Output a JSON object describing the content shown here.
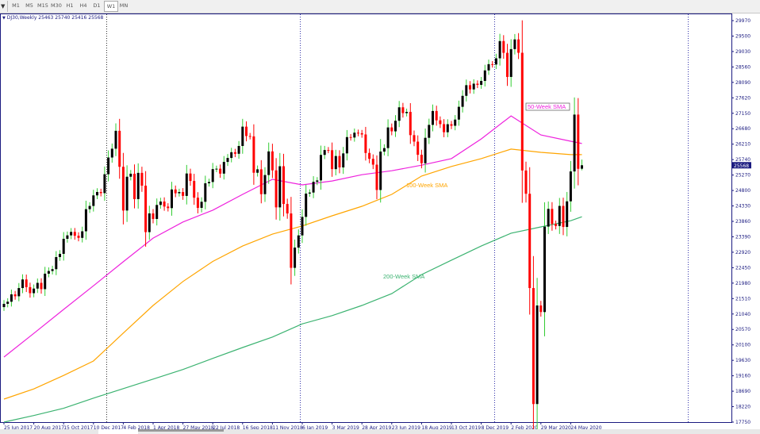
{
  "toolbar": {
    "timeframes": [
      "M1",
      "M5",
      "M15",
      "M30",
      "H1",
      "H4",
      "D1",
      "W1",
      "MN"
    ],
    "active": "W1"
  },
  "chart_title": "DJ30,Weekly  25463 25740 25416 25568",
  "price_tag": "25568",
  "annotations": {
    "sma50": "50-Week SMA",
    "sma100": "100-Week SMA",
    "sma200": "200-Week SMA"
  },
  "colors": {
    "bull_body": "#000000",
    "bull_wick": "#33cc33",
    "bear": "#ff0000",
    "sma50": "#ee22dd",
    "sma100": "#ffa500",
    "sma200": "#3cb371",
    "axis": "#1a1a80",
    "separator": "#3333aa"
  },
  "chart_data": {
    "type": "candlestick",
    "symbol": "DJ30",
    "timeframe": "Weekly",
    "first_bar": "25 Jun 2017",
    "ylim": [
      17750,
      29970
    ],
    "yticks": [
      29970,
      29500,
      29030,
      28560,
      28090,
      27620,
      27150,
      26680,
      26210,
      25740,
      25270,
      24800,
      24330,
      23860,
      23390,
      22920,
      22450,
      21980,
      21510,
      21040,
      20570,
      20100,
      19630,
      19160,
      18690,
      18220,
      17750
    ],
    "xticks": [
      "25 Jun 2017",
      "20 Aug 2017",
      "15 Oct 2017",
      "10 Dec 2017",
      "4 Feb 2018",
      "1 Apr 2018",
      "27 May 2018",
      "22 Jul 2018",
      "16 Sep 2018",
      "11 Nov 2018",
      "6 Jan 2019",
      "3 Mar 2019",
      "28 Apr 2019",
      "23 Jun 2019",
      "18 Aug 2019",
      "13 Oct 2019",
      "8 Dec 2019",
      "2 Feb 2020",
      "29 Mar 2020",
      "24 May 2020"
    ],
    "last_bar": {
      "open": 25463,
      "high": 25740,
      "low": 25416,
      "close": 25568
    },
    "close": [
      21349,
      21414,
      21638,
      21580,
      21830,
      22092,
      21858,
      21674,
      21814,
      21988,
      21797,
      22268,
      22349,
      22405,
      22773,
      22871,
      23329,
      23434,
      23539,
      23422,
      23358,
      23558,
      24231,
      24329,
      24651,
      24754,
      24719,
      25295,
      25803,
      26072,
      26616,
      25521,
      24190,
      25219,
      25310,
      24538,
      25336,
      24946,
      23533,
      24103,
      23933,
      24360,
      24463,
      24311,
      24263,
      24831,
      24715,
      24753,
      24635,
      25317,
      25090,
      24581,
      24271,
      24456,
      25019,
      25058,
      25451,
      25463,
      25313,
      25669,
      25790,
      25965,
      25917,
      26155,
      26743,
      26458,
      26447,
      25340,
      25444,
      24688,
      25271,
      25989,
      25413,
      24286,
      25538,
      24389,
      24101,
      22445,
      23062,
      23433,
      23996,
      24706,
      24737,
      25064,
      25106,
      25883,
      26031,
      26026,
      25450,
      25849,
      25502,
      25929,
      26425,
      26412,
      26559,
      26543,
      26505,
      25942,
      25764,
      25586,
      24815,
      25984,
      26090,
      26719,
      26600,
      26922,
      27332,
      27154,
      27192,
      26485,
      26287,
      25886,
      25629,
      26403,
      26797,
      27220,
      26935,
      26820,
      26573,
      26817,
      26770,
      26958,
      27347,
      27681,
      28005,
      27876,
      28051,
      28015,
      28135,
      28455,
      28645,
      28634,
      28823,
      29348,
      28990,
      28256,
      29103,
      29398,
      28992,
      25409,
      24700,
      21830,
      18300,
      21300,
      21100,
      23700,
      24240,
      23780,
      23720,
      24330,
      23690,
      24470,
      25380,
      27110,
      25460,
      25568
    ],
    "sma_sample_step_weeks": 8,
    "sma50": [
      19730,
      20450,
      21180,
      21900,
      22630,
      23350,
      23840,
      24200,
      24680,
      25140,
      24970,
      25090,
      25280,
      25400,
      25570,
      25770,
      26370,
      27070,
      26490,
      26300,
      26230
    ],
    "sma100": [
      18450,
      18760,
      19170,
      19610,
      20460,
      21300,
      22030,
      22640,
      23110,
      23470,
      23720,
      24030,
      24320,
      24680,
      25240,
      25530,
      25770,
      26060,
      25960,
      25890,
      25890
    ],
    "sma200": [
      17750,
      17950,
      18170,
      18480,
      18770,
      19060,
      19350,
      19690,
      20020,
      20340,
      20740,
      20990,
      21300,
      21660,
      22240,
      22680,
      23110,
      23500,
      23690,
      23880,
      24000
    ],
    "grid": false
  }
}
